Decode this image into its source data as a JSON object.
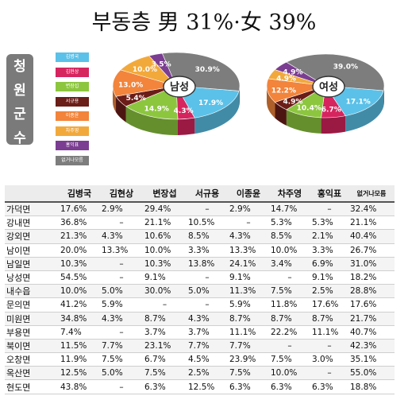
{
  "title": "부동층 男 31%·女 39%",
  "side_label": [
    "청",
    "원",
    "군",
    "수"
  ],
  "colors": {
    "김병국": "#5bc1e8",
    "김현상": "#d6245f",
    "변장섭": "#8cc63f",
    "서규용": "#6b1d18",
    "이종윤": "#f2843b",
    "차주영": "#f2a93b",
    "홍익표": "#7b3d91",
    "없거나모름": "#7d7d7d"
  },
  "chart_data": [
    {
      "type": "pie",
      "center_label": "남성",
      "slices": [
        {
          "name": "김병국",
          "value": 17.9
        },
        {
          "name": "김현상",
          "value": 4.3
        },
        {
          "name": "변장섭",
          "value": 14.9
        },
        {
          "name": "서규용",
          "value": 5.4
        },
        {
          "name": "이종윤",
          "value": 13.0
        },
        {
          "name": "차주영",
          "value": 10.0
        },
        {
          "name": "홍익표",
          "value": 3.5
        },
        {
          "name": "없거나모름",
          "value": 30.9
        }
      ]
    },
    {
      "type": "pie",
      "center_label": "여성",
      "slices": [
        {
          "name": "김병국",
          "value": 17.1
        },
        {
          "name": "김현상",
          "value": 6.7
        },
        {
          "name": "변장섭",
          "value": 10.4
        },
        {
          "name": "서규용",
          "value": 4.9
        },
        {
          "name": "이종윤",
          "value": 12.2
        },
        {
          "name": "차주영",
          "value": 4.9
        },
        {
          "name": "홍익표",
          "value": 4.9
        },
        {
          "name": "없거나모름",
          "value": 39.0
        }
      ]
    },
    {
      "type": "table",
      "columns": [
        "김병국",
        "김현상",
        "변장섭",
        "서규용",
        "이종윤",
        "차주영",
        "홍익표",
        "없거나모름"
      ],
      "rows": [
        {
          "region": "가덕면",
          "values": [
            "17.6%",
            "2.9%",
            "29.4%",
            "–",
            "2.9%",
            "14.7%",
            "–",
            "32.4%"
          ]
        },
        {
          "region": "강내면",
          "values": [
            "36.8%",
            "–",
            "21.1%",
            "10.5%",
            "–",
            "5.3%",
            "5.3%",
            "21.1%"
          ]
        },
        {
          "region": "강외면",
          "values": [
            "21.3%",
            "4.3%",
            "10.6%",
            "8.5%",
            "4.3%",
            "8.5%",
            "2.1%",
            "40.4%"
          ]
        },
        {
          "region": "남이면",
          "values": [
            "20.0%",
            "13.3%",
            "10.0%",
            "3.3%",
            "13.3%",
            "10.0%",
            "3.3%",
            "26.7%"
          ]
        },
        {
          "region": "남일면",
          "values": [
            "10.3%",
            "–",
            "10.3%",
            "13.8%",
            "24.1%",
            "3.4%",
            "6.9%",
            "31.0%"
          ]
        },
        {
          "region": "낭성면",
          "values": [
            "54.5%",
            "–",
            "9.1%",
            "–",
            "9.1%",
            "–",
            "9.1%",
            "18.2%"
          ]
        },
        {
          "region": "내수읍",
          "values": [
            "10.0%",
            "5.0%",
            "30.0%",
            "5.0%",
            "11.3%",
            "7.5%",
            "2.5%",
            "28.8%"
          ]
        },
        {
          "region": "문의면",
          "values": [
            "41.2%",
            "5.9%",
            "–",
            "–",
            "5.9%",
            "11.8%",
            "17.6%",
            "17.6%"
          ]
        },
        {
          "region": "미원면",
          "values": [
            "34.8%",
            "4.3%",
            "8.7%",
            "4.3%",
            "8.7%",
            "8.7%",
            "8.7%",
            "21.7%"
          ]
        },
        {
          "region": "부용면",
          "values": [
            "7.4%",
            "–",
            "3.7%",
            "3.7%",
            "11.1%",
            "22.2%",
            "11.1%",
            "40.7%"
          ]
        },
        {
          "region": "북이면",
          "values": [
            "11.5%",
            "7.7%",
            "23.1%",
            "7.7%",
            "7.7%",
            "–",
            "–",
            "42.3%"
          ]
        },
        {
          "region": "오창면",
          "values": [
            "11.9%",
            "7.5%",
            "6.7%",
            "4.5%",
            "23.9%",
            "7.5%",
            "3.0%",
            "35.1%"
          ]
        },
        {
          "region": "옥산면",
          "values": [
            "12.5%",
            "5.0%",
            "7.5%",
            "2.5%",
            "7.5%",
            "10.0%",
            "–",
            "55.0%"
          ]
        },
        {
          "region": "현도면",
          "values": [
            "43.8%",
            "–",
            "6.3%",
            "12.5%",
            "6.3%",
            "6.3%",
            "6.3%",
            "18.8%"
          ]
        }
      ]
    }
  ]
}
